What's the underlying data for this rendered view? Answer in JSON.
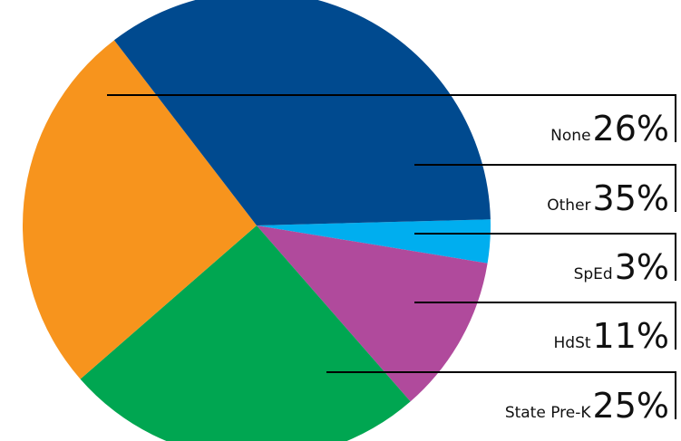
{
  "chart_data": {
    "type": "pie",
    "categories": [
      "None",
      "Other",
      "SpEd",
      "HdSt",
      "State Pre-K"
    ],
    "values": [
      26,
      35,
      3,
      11,
      25
    ],
    "value_labels": [
      "26%",
      "35%",
      "3%",
      "11%",
      "25%"
    ],
    "colors": [
      "#f7941d",
      "#004a8f",
      "#00aeef",
      "#b04a9c",
      "#00a651"
    ]
  }
}
